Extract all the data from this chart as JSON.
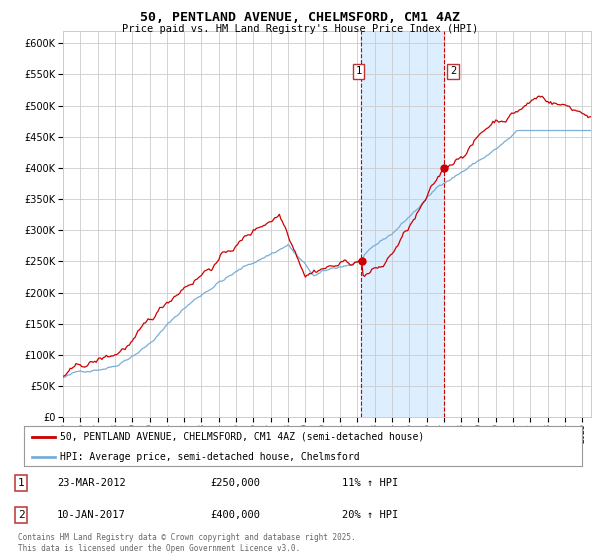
{
  "title": "50, PENTLAND AVENUE, CHELMSFORD, CM1 4AZ",
  "subtitle": "Price paid vs. HM Land Registry's House Price Index (HPI)",
  "legend_line1": "50, PENTLAND AVENUE, CHELMSFORD, CM1 4AZ (semi-detached house)",
  "legend_line2": "HPI: Average price, semi-detached house, Chelmsford",
  "annotation1_label": "1",
  "annotation1_date": "23-MAR-2012",
  "annotation1_price": "£250,000",
  "annotation1_hpi": "11% ↑ HPI",
  "annotation1_year": 2012.23,
  "annotation1_value": 250000,
  "annotation2_label": "2",
  "annotation2_date": "10-JAN-2017",
  "annotation2_price": "£400,000",
  "annotation2_hpi": "20% ↑ HPI",
  "annotation2_year": 2017.03,
  "annotation2_value": 400000,
  "ylim_min": 0,
  "ylim_max": 620000,
  "ylabel_step": 50000,
  "xmin": 1995,
  "xmax": 2025.5,
  "red_color": "#cc0000",
  "blue_color": "#7aaed6",
  "shade_color": "#ddeeff",
  "grid_color": "#cccccc",
  "background_color": "#ffffff",
  "footer": "Contains HM Land Registry data © Crown copyright and database right 2025.\nThis data is licensed under the Open Government Licence v3.0."
}
